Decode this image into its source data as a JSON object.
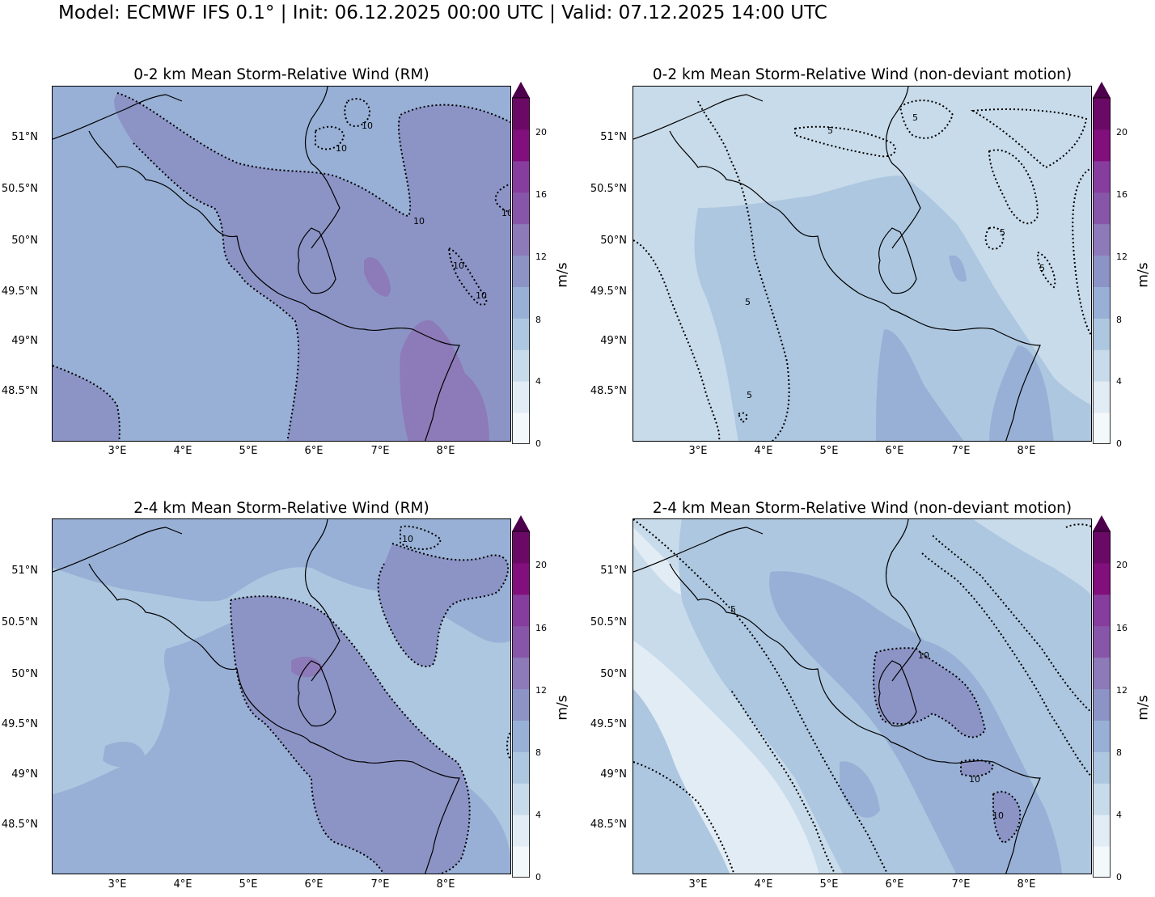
{
  "suptitle": "Model: ECMWF IFS 0.1° | Init: 06.12.2025 00:00 UTC | Valid: 07.12.2025 14:00 UTC",
  "lat_ticks": [
    "51°N",
    "50.5°N",
    "50°N",
    "49.5°N",
    "49°N",
    "48.5°N"
  ],
  "lon_ticks": [
    "3°E",
    "4°E",
    "5°E",
    "6°E",
    "7°E",
    "8°E"
  ],
  "colorbar": {
    "unit": "m/s",
    "ticks": [
      "0",
      "4",
      "8",
      "12",
      "16",
      "20"
    ],
    "levels": [
      0,
      2,
      4,
      6,
      8,
      10,
      12,
      14,
      16,
      18,
      20,
      22
    ],
    "colors": [
      "#f3f8fb",
      "#e2ecf5",
      "#c8dbea",
      "#adc7e0",
      "#98b0d6",
      "#8c94c6",
      "#8d7ab8",
      "#8856a8",
      "#873d9d",
      "#810f7c",
      "#6b0a66",
      "#4d004b"
    ]
  },
  "panels": [
    {
      "title": "0-2 km Mean Storm-Relative Wind (RM)",
      "contour_labels": [
        "10",
        "10",
        "10",
        "10",
        "10",
        "10"
      ]
    },
    {
      "title": "0-2 km Mean Storm-Relative Wind (non-deviant motion)",
      "contour_labels": [
        "5",
        "5",
        "5",
        "5",
        "5",
        "5"
      ]
    },
    {
      "title": "2-4 km Mean Storm-Relative Wind (RM)",
      "contour_labels": [
        "10"
      ]
    },
    {
      "title": "2-4 km Mean Storm-Relative Wind (non-deviant motion)",
      "contour_labels": [
        "5",
        "10",
        "10",
        "10"
      ]
    }
  ]
}
